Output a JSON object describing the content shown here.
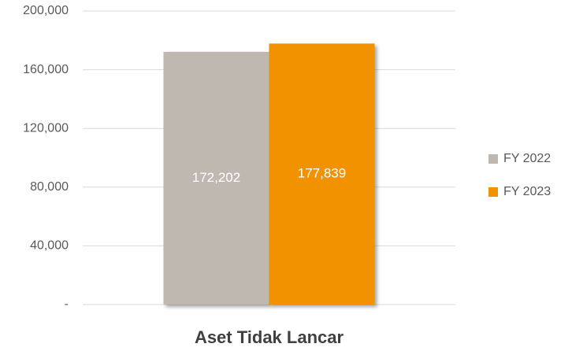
{
  "chart_data": {
    "type": "bar",
    "categories": [
      "Aset Tidak Lancar"
    ],
    "series": [
      {
        "name": "FY 2022",
        "color": "#bfb8b1",
        "values": [
          172202
        ],
        "value_labels": [
          "172,202"
        ]
      },
      {
        "name": "FY 2023",
        "color": "#f39200",
        "values": [
          177839
        ],
        "value_labels": [
          "177,839"
        ]
      }
    ],
    "ylim": [
      0,
      200000
    ],
    "yticks": [
      {
        "value": 0,
        "label": "-"
      },
      {
        "value": 40000,
        "label": "40,000"
      },
      {
        "value": 80000,
        "label": "80,000"
      },
      {
        "value": 120000,
        "label": "120,000"
      },
      {
        "value": 160000,
        "label": "160,000"
      },
      {
        "value": 200000,
        "label": "200,000"
      }
    ],
    "grid": true,
    "legend": "right"
  }
}
